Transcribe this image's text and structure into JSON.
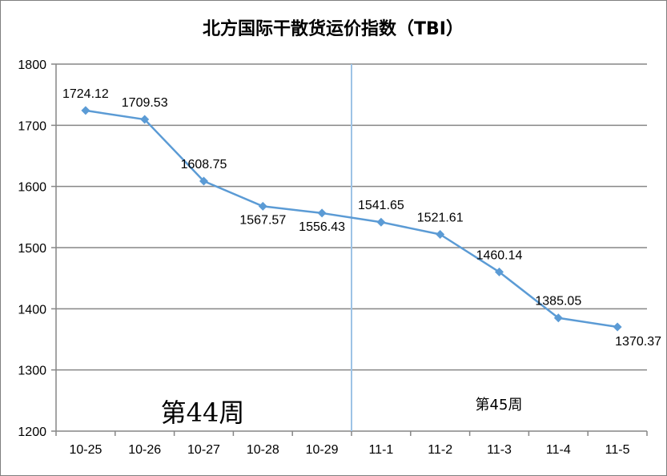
{
  "chart_data": {
    "type": "line",
    "title": "北方国际干散货运价指数（TBI）",
    "categories": [
      "10-25",
      "10-26",
      "10-27",
      "10-28",
      "10-29",
      "11-1",
      "11-2",
      "11-3",
      "11-4",
      "11-5"
    ],
    "values": [
      1724.12,
      1709.53,
      1608.75,
      1567.57,
      1556.43,
      1541.65,
      1521.61,
      1460.14,
      1385.05,
      1370.37
    ],
    "data_labels": [
      "1724.12",
      "1709.53",
      "1608.75",
      "1567.57",
      "1556.43",
      "1541.65",
      "1521.61",
      "1460.14",
      "1385.05",
      "1370.37"
    ],
    "yticks": [
      1200,
      1300,
      1400,
      1500,
      1600,
      1700,
      1800
    ],
    "ylim": [
      1200,
      1800
    ],
    "grid": true,
    "legend": "none",
    "annotations": {
      "week_left": "第44周",
      "week_right": "第45周"
    },
    "divider_between": [
      "10-29",
      "11-1"
    ],
    "colors": {
      "series": "#5b9bd5",
      "divider": "#9dc3e6",
      "grid": "#868686",
      "axis": "#868686"
    }
  }
}
